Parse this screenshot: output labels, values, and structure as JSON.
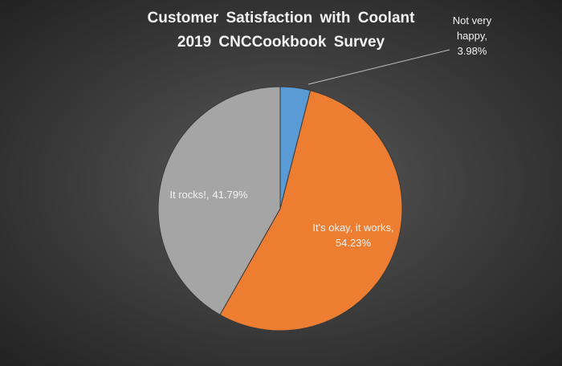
{
  "chart_data": {
    "type": "pie",
    "title": "Customer Satisfaction with Coolant",
    "subtitle": "2019 CNCCookbook Survey",
    "categories": [
      "Not very happy,",
      "It's okay, it works,",
      "It rocks!,"
    ],
    "values": [
      3.98,
      54.23,
      41.79
    ],
    "value_labels": [
      "3.98%",
      "54.23%",
      "41.79%"
    ],
    "colors": [
      "#5b9bd5",
      "#ed7d31",
      "#a5a5a5"
    ]
  }
}
